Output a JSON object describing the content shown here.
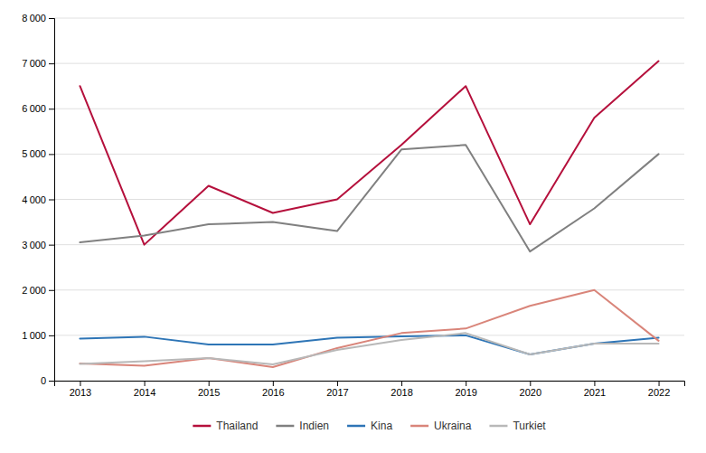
{
  "chart_data": {
    "type": "line",
    "x": [
      2013,
      2014,
      2015,
      2016,
      2017,
      2018,
      2019,
      2020,
      2021,
      2022
    ],
    "xlim": [
      2012.6,
      2022.4
    ],
    "xticks": [
      2013,
      2014,
      2015,
      2016,
      2017,
      2018,
      2019,
      2020,
      2021,
      2022
    ],
    "ylim": [
      0,
      8000
    ],
    "yticks": [
      0,
      {
        "value": 1000,
        "label": "1 000"
      },
      {
        "value": 2000,
        "label": "2 000"
      },
      {
        "value": 3000,
        "label": "3 000"
      },
      {
        "value": 4000,
        "label": "4 000"
      },
      {
        "value": 5000,
        "label": "5 000"
      },
      {
        "value": 6000,
        "label": "6 000"
      },
      {
        "value": 7000,
        "label": "7 000"
      },
      {
        "value": 8000,
        "label": "8 000"
      }
    ],
    "grid": true,
    "legend": "bottom",
    "series": [
      {
        "name": "Thailand",
        "color": "#b5103c",
        "values": [
          6500,
          3000,
          4300,
          3700,
          4000,
          5200,
          6500,
          3450,
          5800,
          7050
        ]
      },
      {
        "name": "Indien",
        "color": "#808080",
        "values": [
          3050,
          3200,
          3450,
          3500,
          3300,
          5100,
          5200,
          2850,
          3800,
          5000
        ]
      },
      {
        "name": "Kina",
        "color": "#2e75b6",
        "values": [
          930,
          970,
          800,
          800,
          950,
          980,
          1000,
          580,
          820,
          950
        ]
      },
      {
        "name": "Ukraina",
        "color": "#d9857a",
        "values": [
          380,
          330,
          500,
          300,
          720,
          1050,
          1150,
          1650,
          2000,
          880
        ]
      },
      {
        "name": "Turkiet",
        "color": "#b8b8b8",
        "values": [
          370,
          430,
          500,
          360,
          680,
          900,
          1050,
          580,
          820,
          820
        ]
      }
    ]
  }
}
